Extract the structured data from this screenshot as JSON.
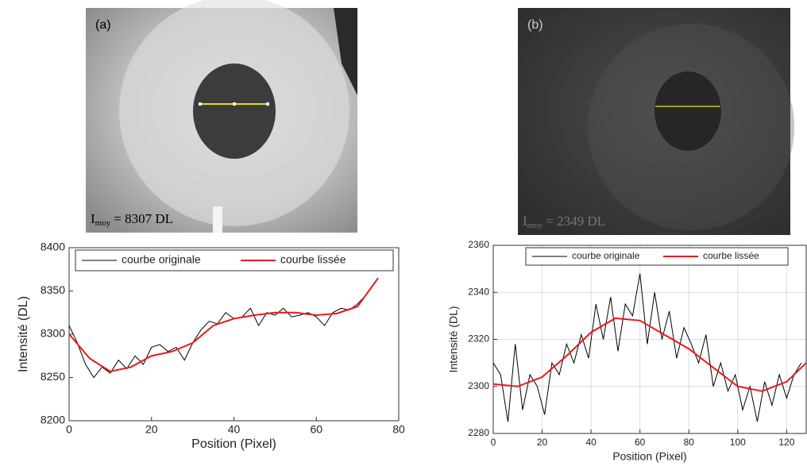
{
  "chart_data": [
    {
      "type": "line",
      "panel_label": "(a)",
      "annotation": {
        "symbol": "I",
        "subscript": "moy",
        "text": "= 8307 DL"
      },
      "xlabel": "Position (Pixel)",
      "ylabel": "Intensité (DL)",
      "xlim": [
        0,
        80
      ],
      "xticks": [
        0,
        20,
        40,
        60,
        80
      ],
      "ylim": [
        8200,
        8400
      ],
      "yticks": [
        8200,
        8250,
        8300,
        8350,
        8400
      ],
      "grid": false,
      "series": [
        {
          "name": "courbe originale",
          "color": "#000000",
          "x": [
            0,
            2,
            4,
            6,
            8,
            10,
            12,
            14,
            16,
            18,
            20,
            22,
            24,
            26,
            28,
            30,
            32,
            34,
            36,
            38,
            40,
            42,
            44,
            46,
            48,
            50,
            52,
            54,
            56,
            58,
            60,
            62,
            64,
            66,
            68,
            70,
            72,
            74,
            75
          ],
          "values": [
            8310,
            8290,
            8265,
            8250,
            8262,
            8255,
            8270,
            8260,
            8275,
            8265,
            8285,
            8288,
            8280,
            8285,
            8270,
            8290,
            8305,
            8315,
            8312,
            8325,
            8318,
            8320,
            8330,
            8310,
            8325,
            8322,
            8330,
            8320,
            8322,
            8325,
            8320,
            8310,
            8325,
            8330,
            8328,
            8335,
            8345,
            8358,
            8365
          ]
        },
        {
          "name": "courbe lissée",
          "color": "#e8191e",
          "x": [
            0,
            5,
            10,
            15,
            20,
            25,
            30,
            35,
            40,
            45,
            50,
            55,
            60,
            65,
            70,
            75
          ],
          "values": [
            8300,
            8272,
            8257,
            8262,
            8275,
            8280,
            8290,
            8310,
            8318,
            8322,
            8325,
            8325,
            8322,
            8324,
            8332,
            8365
          ]
        }
      ]
    },
    {
      "type": "line",
      "panel_label": "(b)",
      "annotation": {
        "symbol": "I",
        "subscript": "moy",
        "text": "= 2349 DL"
      },
      "xlabel": "Position (Pixel)",
      "ylabel": "Intensité (DL)",
      "xlim": [
        0,
        128
      ],
      "xticks": [
        0,
        20,
        40,
        60,
        80,
        100,
        120
      ],
      "ylim": [
        2280,
        2360
      ],
      "yticks": [
        2280,
        2300,
        2320,
        2340,
        2360
      ],
      "grid": true,
      "series": [
        {
          "name": "courbe originale",
          "color": "#000000",
          "x": [
            0,
            3,
            6,
            9,
            12,
            15,
            18,
            21,
            24,
            27,
            30,
            33,
            36,
            39,
            42,
            45,
            48,
            51,
            54,
            57,
            60,
            63,
            66,
            69,
            72,
            75,
            78,
            81,
            84,
            87,
            90,
            93,
            96,
            99,
            102,
            105,
            108,
            111,
            114,
            117,
            120,
            123,
            126
          ],
          "values": [
            2310,
            2305,
            2285,
            2318,
            2290,
            2305,
            2300,
            2288,
            2310,
            2305,
            2318,
            2310,
            2322,
            2312,
            2335,
            2320,
            2338,
            2315,
            2335,
            2330,
            2348,
            2318,
            2340,
            2320,
            2332,
            2312,
            2325,
            2318,
            2310,
            2322,
            2300,
            2310,
            2298,
            2305,
            2290,
            2300,
            2285,
            2302,
            2292,
            2305,
            2295,
            2305,
            2310
          ]
        },
        {
          "name": "courbe lissée",
          "color": "#e8191e",
          "x": [
            0,
            10,
            20,
            30,
            40,
            50,
            60,
            70,
            80,
            90,
            100,
            110,
            120,
            128
          ],
          "values": [
            2301,
            2300,
            2304,
            2313,
            2323,
            2329,
            2328,
            2322,
            2316,
            2308,
            2300,
            2298,
            2302,
            2310
          ]
        }
      ]
    }
  ]
}
